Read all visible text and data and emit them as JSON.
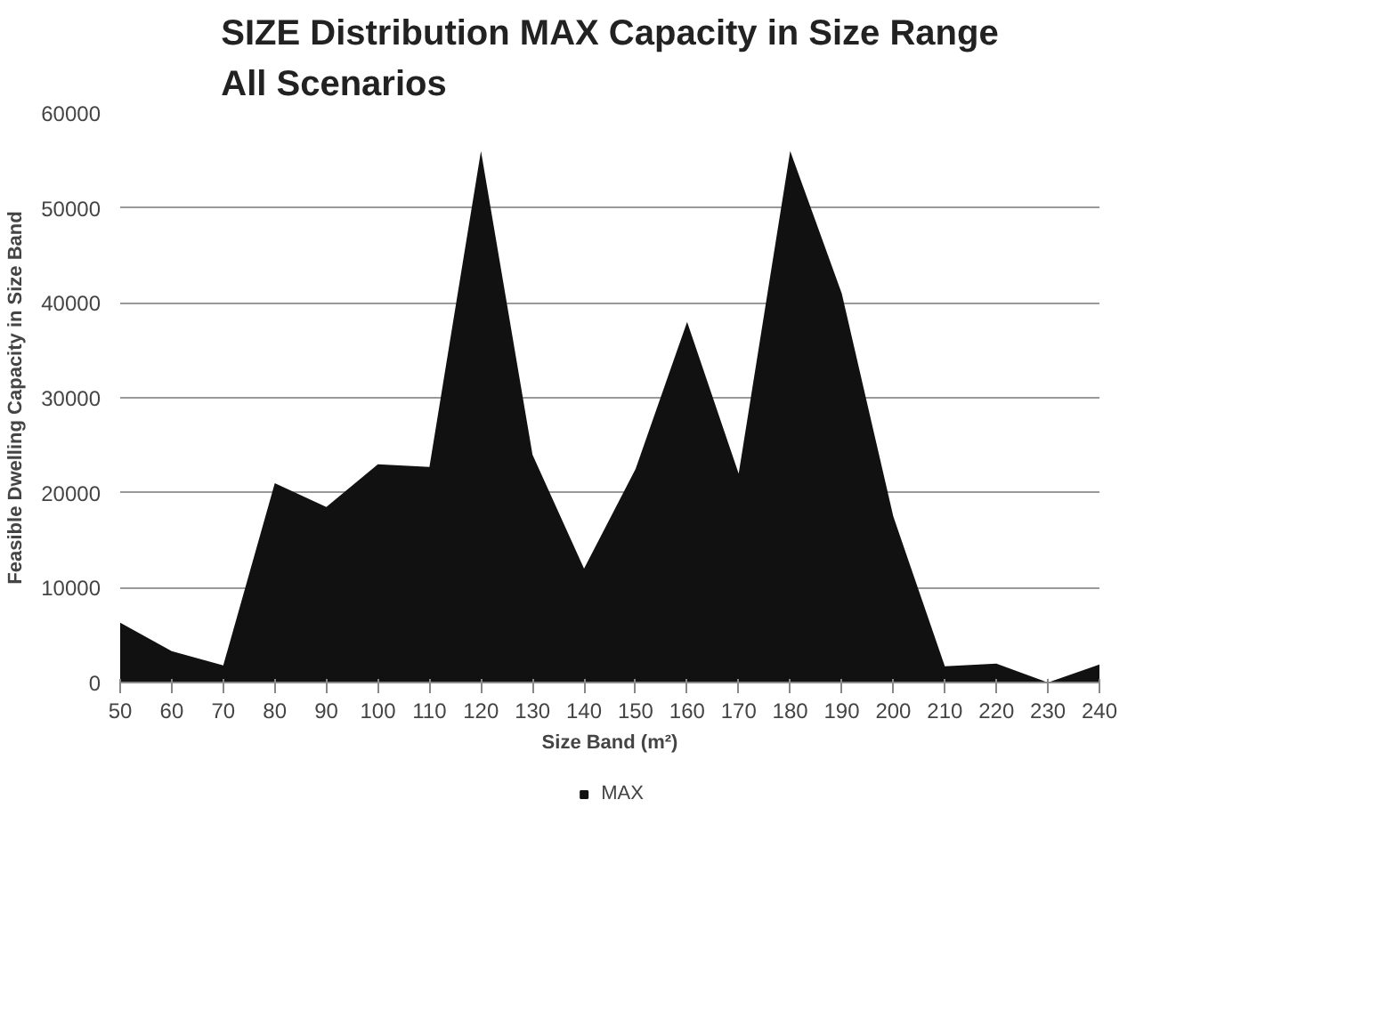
{
  "chart_data": {
    "type": "area",
    "title": "SIZE Distribution MAX Capacity in Size Range\nAll Scenarios",
    "xlabel": "Size Band (m²)",
    "ylabel": "Feasible Dwelling Capacity in Size Band",
    "categories": [
      "50",
      "60",
      "70",
      "80",
      "90",
      "100",
      "110",
      "120",
      "130",
      "140",
      "150",
      "160",
      "170",
      "180",
      "190",
      "200",
      "210",
      "220",
      "230",
      "240"
    ],
    "series": [
      {
        "name": "MAX",
        "color": "#111111",
        "values": [
          6300,
          3300,
          1800,
          21000,
          18500,
          23000,
          22700,
          56000,
          24000,
          12000,
          22500,
          38000,
          22000,
          56000,
          41000,
          17500,
          1700,
          2000,
          0,
          1900
        ]
      }
    ],
    "ylim": [
      0,
      60000
    ],
    "yticks": [
      0,
      10000,
      20000,
      30000,
      40000,
      50000,
      60000
    ],
    "grid": "y",
    "legend": "bottom"
  }
}
